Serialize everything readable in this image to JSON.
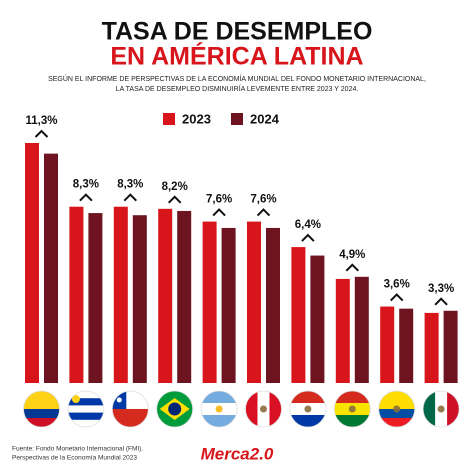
{
  "chart_data": {
    "type": "bar",
    "title": "TASA DE DESEMPLEO",
    "subtitle": "EN AMÉRICA LATINA",
    "description": [
      "SEGÚN EL INFORME DE PERSPECTIVAS DE LA ECONOMÍA MUNDIAL DEL FONDO MONETARIO INTERNACIONAL,",
      "LA TASA DE DESEMPLEO DISMINUIRÍA LEVEMENTE ENTRE 2023 Y 2024."
    ],
    "categories": [
      null,
      null,
      null,
      null,
      null,
      null,
      null,
      null,
      null,
      null
    ],
    "series": [
      {
        "name": "2023",
        "color": "#d7151b",
        "values": [
          11.3,
          8.3,
          8.3,
          8.2,
          7.6,
          7.6,
          6.4,
          4.9,
          3.6,
          3.3
        ],
        "value_labels": [
          "11,3%",
          "8,3%",
          "8,3%",
          "8,2%",
          "7,6%",
          "7,6%",
          "6,4%",
          "4,9%",
          "3,6%",
          "3,3%"
        ]
      },
      {
        "name": "2024",
        "color": "#6d1420",
        "values": [
          10.8,
          8.0,
          7.9,
          8.1,
          7.3,
          7.3,
          6.0,
          5.0,
          3.5,
          3.4
        ]
      }
    ],
    "legend": "top-center",
    "source": [
      "Fuente: Fondo Monetario Internacional (FMI).",
      "Perspectivas de la Economía Mundial 2023"
    ],
    "brand": "Merca2.0"
  }
}
